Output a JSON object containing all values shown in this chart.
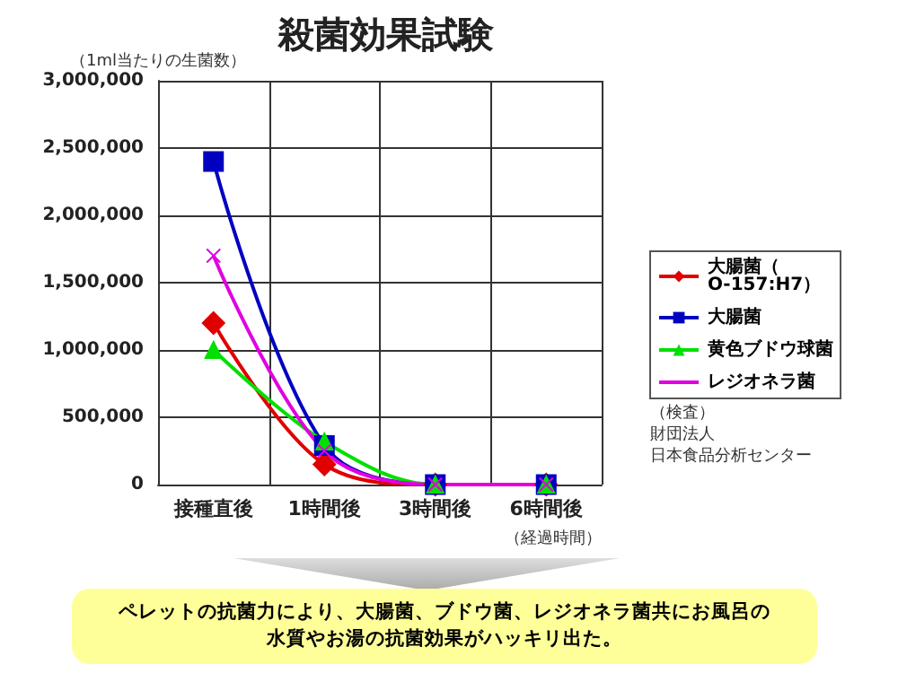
{
  "chart_data": {
    "type": "line",
    "title": "殺菌効果試験",
    "ylabel": "（1ml当たりの生菌数）",
    "xlabel": "（経過時間）",
    "categories": [
      "接種直後",
      "1時間後",
      "3時間後",
      "6時間後"
    ],
    "series": [
      {
        "name": "大腸菌（O-157:H7）",
        "color": "#e00000",
        "marker": "diamond",
        "values": [
          1200000,
          150000,
          0,
          0
        ]
      },
      {
        "name": "大腸菌",
        "color": "#0000c0",
        "marker": "square",
        "values": [
          2400000,
          290000,
          0,
          0
        ]
      },
      {
        "name": "黄色ブドウ球菌",
        "color": "#00e000",
        "marker": "triangle",
        "values": [
          1000000,
          320000,
          0,
          0
        ]
      },
      {
        "name": "レジオネラ菌",
        "color": "#e000e0",
        "marker": "cross",
        "values": [
          1700000,
          250000,
          0,
          0
        ]
      }
    ],
    "ylim": [
      0,
      3000000
    ],
    "yticks": [
      0,
      {
        "value": 500000,
        "label": "500,000"
      },
      {
        "value": 1000000,
        "label": "1,000,000"
      },
      {
        "value": 1500000,
        "label": "1,500,000"
      },
      {
        "value": 2000000,
        "label": "2,000,000"
      },
      {
        "value": 2500000,
        "label": "2,500,000"
      },
      {
        "value": 3000000,
        "label": "3,000,000"
      }
    ],
    "grid": true,
    "legend": "right",
    "line_style": "solid",
    "annotations": [
      "（検査）",
      "財団法人",
      "日本食品分析センター",
      "ペレットの抗菌力により、大腸菌、ブドウ菌、レジオネラ菌共にお風呂の水質やお湯の抗菌効果がハッキリ出た。"
    ]
  }
}
